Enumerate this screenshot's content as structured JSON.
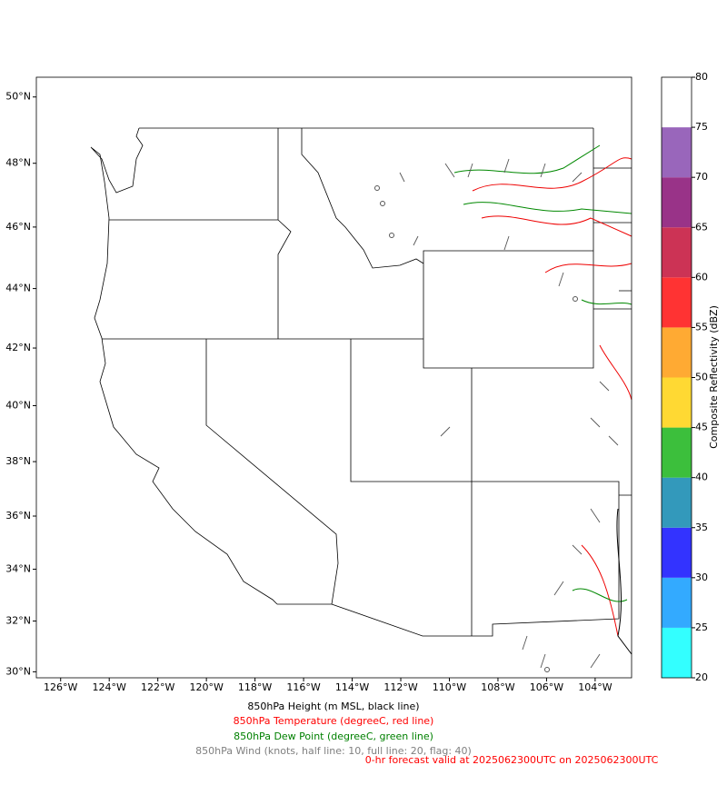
{
  "map": {
    "xlim": [
      -127.0,
      -102.5
    ],
    "ylim": [
      29.76,
      50.58
    ],
    "xticks": [
      {
        "value": -126,
        "label": "126°W"
      },
      {
        "value": -124,
        "label": "124°W"
      },
      {
        "value": -122,
        "label": "122°W"
      },
      {
        "value": -120,
        "label": "120°W"
      },
      {
        "value": -118,
        "label": "118°W"
      },
      {
        "value": -116,
        "label": "116°W"
      },
      {
        "value": -114,
        "label": "114°W"
      },
      {
        "value": -112,
        "label": "112°W"
      },
      {
        "value": -110,
        "label": "110°W"
      },
      {
        "value": -108,
        "label": "108°W"
      },
      {
        "value": -106,
        "label": "106°W"
      },
      {
        "value": -104,
        "label": "104°W"
      }
    ],
    "yticks": [
      {
        "value": 30,
        "label": "30°N"
      },
      {
        "value": 32,
        "label": "32°N"
      },
      {
        "value": 34,
        "label": "34°N"
      },
      {
        "value": 36,
        "label": "36°N"
      },
      {
        "value": 38,
        "label": "38°N"
      },
      {
        "value": 40,
        "label": "40°N"
      },
      {
        "value": 42,
        "label": "42°N"
      },
      {
        "value": 44,
        "label": "44°N"
      },
      {
        "value": 46,
        "label": "46°N"
      },
      {
        "value": 48,
        "label": "48°N"
      },
      {
        "value": 50,
        "label": "50°N"
      }
    ]
  },
  "colorbar": {
    "label": "Composite Reflectivity (dBZ)",
    "ticks": [
      20,
      25,
      30,
      35,
      40,
      45,
      50,
      55,
      60,
      65,
      70,
      75,
      80
    ],
    "colors": [
      "#33ffff",
      "#33aaff",
      "#3333ff",
      "#3399bb",
      "#3cbf3c",
      "#ffd933",
      "#ffaa33",
      "#ff3333",
      "#cc3355",
      "#993388",
      "#9966bb",
      "#ffffff"
    ]
  },
  "captions": [
    {
      "text": "850hPa Height (m MSL, black line)",
      "color": "#000000"
    },
    {
      "text": "850hPa Temperature (degreeC, red line)",
      "color": "#ff0000"
    },
    {
      "text": "850hPa Dew Point (degreeC, green line)",
      "color": "#008000"
    },
    {
      "text": "850hPa Wind (knots, half line: 10, full line: 20, flag: 40)",
      "color": "#808080"
    },
    {
      "text": "0-hr forecast valid at 2025062300UTC on 2025062300UTC",
      "color": "#ff0000"
    }
  ]
}
